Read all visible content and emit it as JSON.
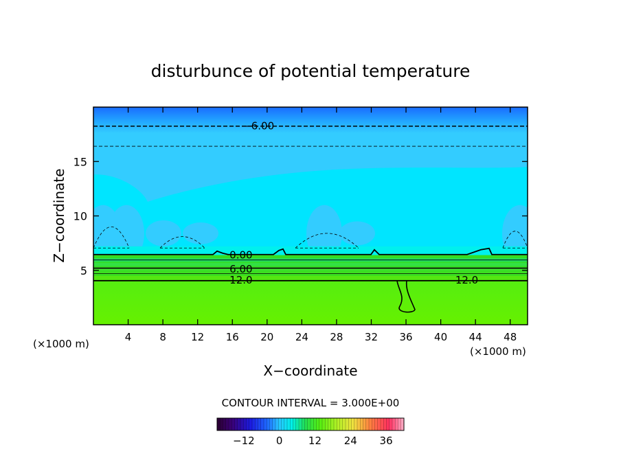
{
  "chart_data": {
    "type": "heatmap",
    "title": "disturbunce of potential temperature",
    "xlabel": "X−coordinate",
    "ylabel": "Z−coordinate",
    "x_unit_left": "(×1000 m)",
    "x_unit_right": "(×1000 m)",
    "xlim": [
      0,
      50
    ],
    "ylim": [
      0,
      20
    ],
    "x_ticks": [
      4,
      8,
      12,
      16,
      20,
      24,
      28,
      32,
      36,
      40,
      44,
      48
    ],
    "y_ticks": [
      5,
      10,
      15
    ],
    "contour_labels": [
      {
        "text": "−6.00",
        "x": 19,
        "z": 18.25
      },
      {
        "text": "0.00",
        "x": 17,
        "z": 6.4
      },
      {
        "text": "6.00",
        "x": 17,
        "z": 5.1
      },
      {
        "text": "12.0",
        "x": 17,
        "z": 4.1
      },
      {
        "text": "12.0",
        "x": 43,
        "z": 4.1
      }
    ],
    "contour_interval_text": "CONTOUR INTERVAL = 3.000E+00",
    "colorbar": {
      "min": -21,
      "max": 42,
      "tick_values": [
        -12,
        0,
        12,
        24,
        36
      ],
      "tick_labels": [
        "−12",
        "0",
        "12",
        "24",
        "36"
      ]
    },
    "colors": {
      "upper_blue": "#1a75ff",
      "light_blue": "#33ccff",
      "cyan": "#00e5ff",
      "aqua": "#00f0ee",
      "bright_green": "#66ee00",
      "green": "#33dd22"
    }
  }
}
